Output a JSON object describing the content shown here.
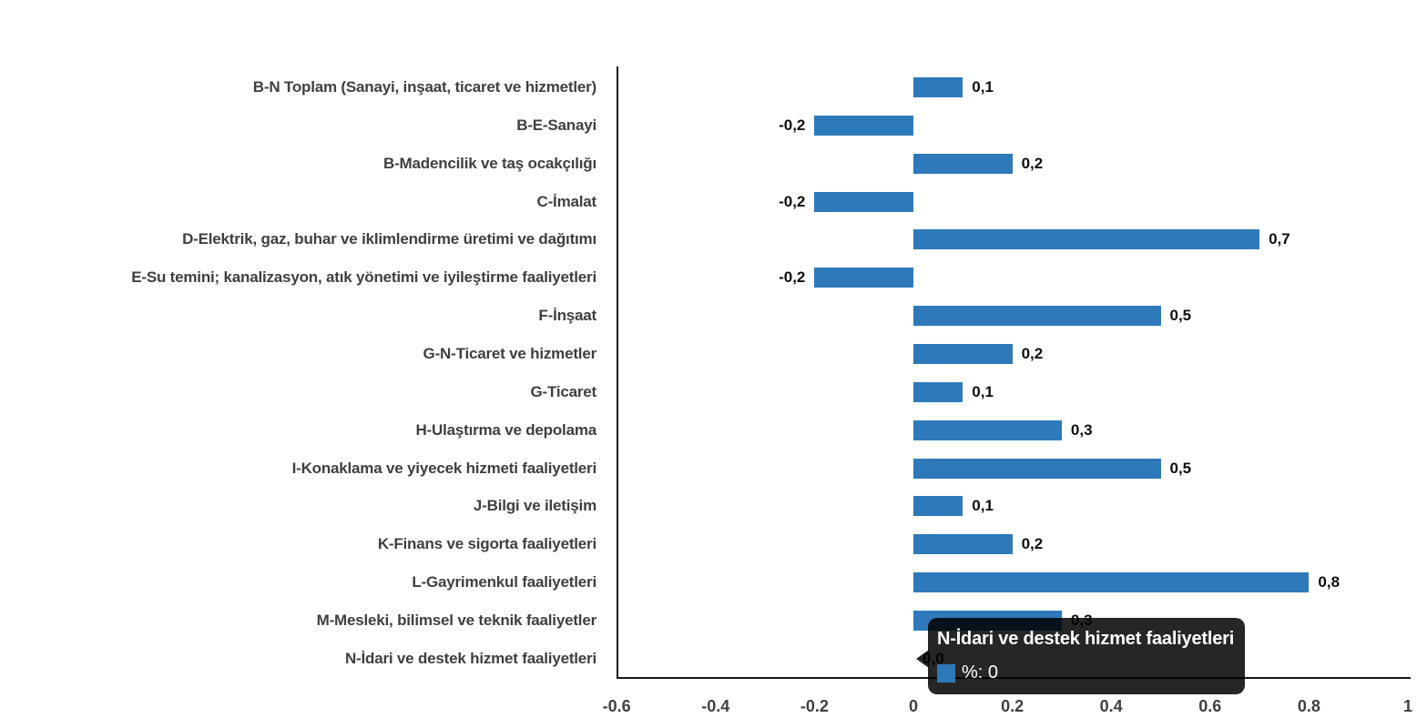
{
  "chart_data": {
    "type": "bar",
    "orientation": "horizontal",
    "title": "",
    "xlabel": "",
    "ylabel": "",
    "xlim": [
      -0.6,
      1
    ],
    "grid": false,
    "legend_position": "none",
    "bar_color": "#2e79b9",
    "categories": [
      "B-N Toplam (Sanayi, inşaat, ticaret ve hizmetler)",
      "B-E-Sanayi",
      "B-Madencilik ve taş ocakçılığı",
      "C-İmalat",
      "D-Elektrik, gaz, buhar ve iklimlendirme üretimi ve dağıtımı",
      "E-Su temini; kanalizasyon, atık yönetimi ve iyileştirme faaliyetleri",
      "F-İnşaat",
      "G-N-Ticaret ve hizmetler",
      "G-Ticaret",
      "H-Ulaştırma ve depolama",
      "I-Konaklama ve yiyecek hizmeti faaliyetleri",
      "J-Bilgi ve iletişim",
      "K-Finans ve sigorta faaliyetleri",
      "L-Gayrimenkul faaliyetleri",
      "M-Mesleki, bilimsel ve teknik faaliyetler",
      "N-İdari ve destek hizmet faaliyetleri"
    ],
    "values": [
      0.1,
      -0.2,
      0.2,
      -0.2,
      0.7,
      -0.2,
      0.5,
      0.2,
      0.1,
      0.3,
      0.5,
      0.1,
      0.2,
      0.8,
      0.3,
      0
    ],
    "value_labels": [
      "0,1",
      "-0,2",
      "0,2",
      "-0,2",
      "0,7",
      "-0,2",
      "0,5",
      "0,2",
      "0,1",
      "0,3",
      "0,5",
      "0,1",
      "0,2",
      "0,8",
      "0,3",
      "0,0"
    ],
    "x_tick_values": [
      -0.6,
      -0.4,
      -0.2,
      0,
      0.2,
      0.4,
      0.6,
      0.8,
      1
    ],
    "x_tick_labels": [
      "-0.6",
      "-0.4",
      "-0.2",
      "0",
      "0.2",
      "0.4",
      "0.6",
      "0.8",
      "1"
    ]
  },
  "tooltip": {
    "title": "N-İdari ve destek hizmet faaliyetleri",
    "value_text": "%: 0",
    "swatch_color": "#2e79b9",
    "background_color": "#000000",
    "text_color": "#ffffff"
  },
  "colors": {
    "bar": "#2e79b9",
    "category_label": "#3f3f3f",
    "tick_label": "#3f3f3f",
    "value_label": "#0d0d0d",
    "axis_line": "#1a1a1a"
  }
}
